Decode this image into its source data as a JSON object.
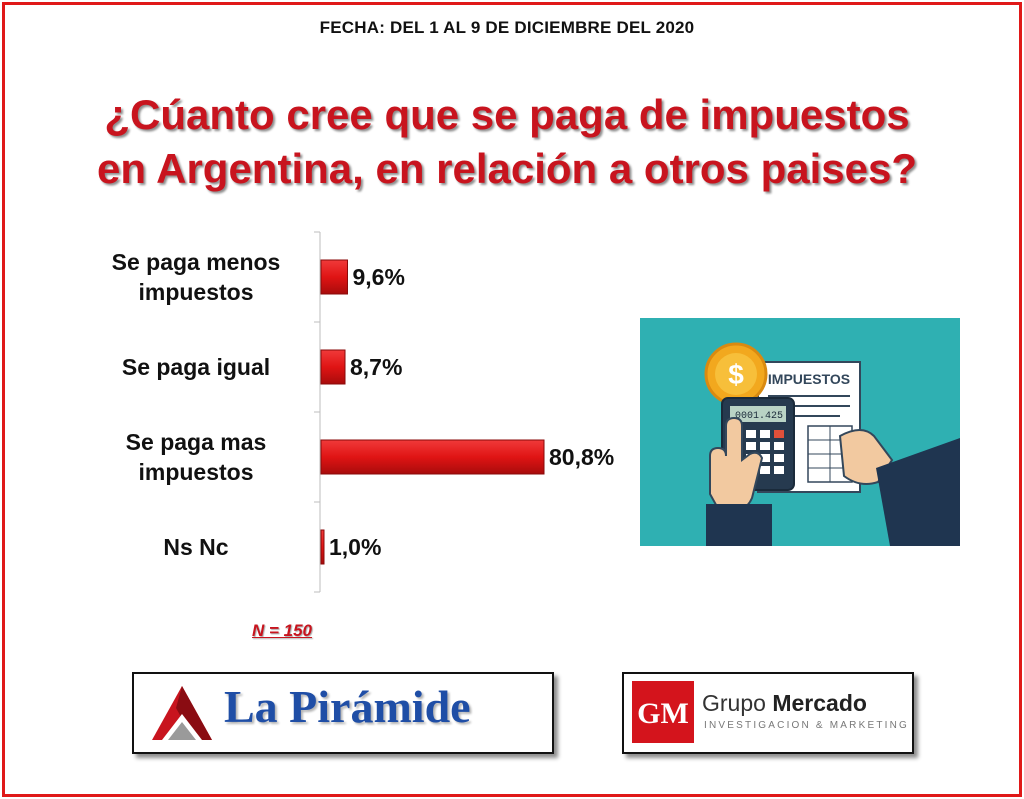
{
  "header": {
    "date": "FECHA: DEL 1 AL 9 DE DICIEMBRE DEL 2020",
    "title_line1": "¿Cúanto cree que se paga de impuestos",
    "title_line2": "en Argentina, en relación a otros paises?"
  },
  "chart_data": {
    "type": "bar",
    "orientation": "horizontal",
    "categories": [
      [
        "Se paga menos",
        "impuestos"
      ],
      [
        "Se paga igual"
      ],
      [
        "Se paga mas",
        "impuestos"
      ],
      [
        "Ns Nc"
      ]
    ],
    "values": [
      9.6,
      8.7,
      80.8,
      1.0
    ],
    "value_labels": [
      "9,6%",
      "8,7%",
      "80,8%",
      "1,0%"
    ],
    "bar_color": "#e01414",
    "grid": false,
    "legend": "none"
  },
  "sample": {
    "label": "N = 150"
  },
  "illustration": {
    "heading": "IMPUESTOS",
    "display": "0001.425",
    "coin_symbol": "$",
    "background": "#2fb0b2"
  },
  "logos": {
    "left": {
      "name": "La Pirámide"
    },
    "right": {
      "monogram": "GM",
      "name_a": "Grupo",
      "name_b": "Mercado",
      "tagline": "INVESTIGACION & MARKETING"
    }
  },
  "colors": {
    "frame": "#e01818",
    "title": "#c8141e",
    "accent_blue": "#1f4ea6"
  }
}
